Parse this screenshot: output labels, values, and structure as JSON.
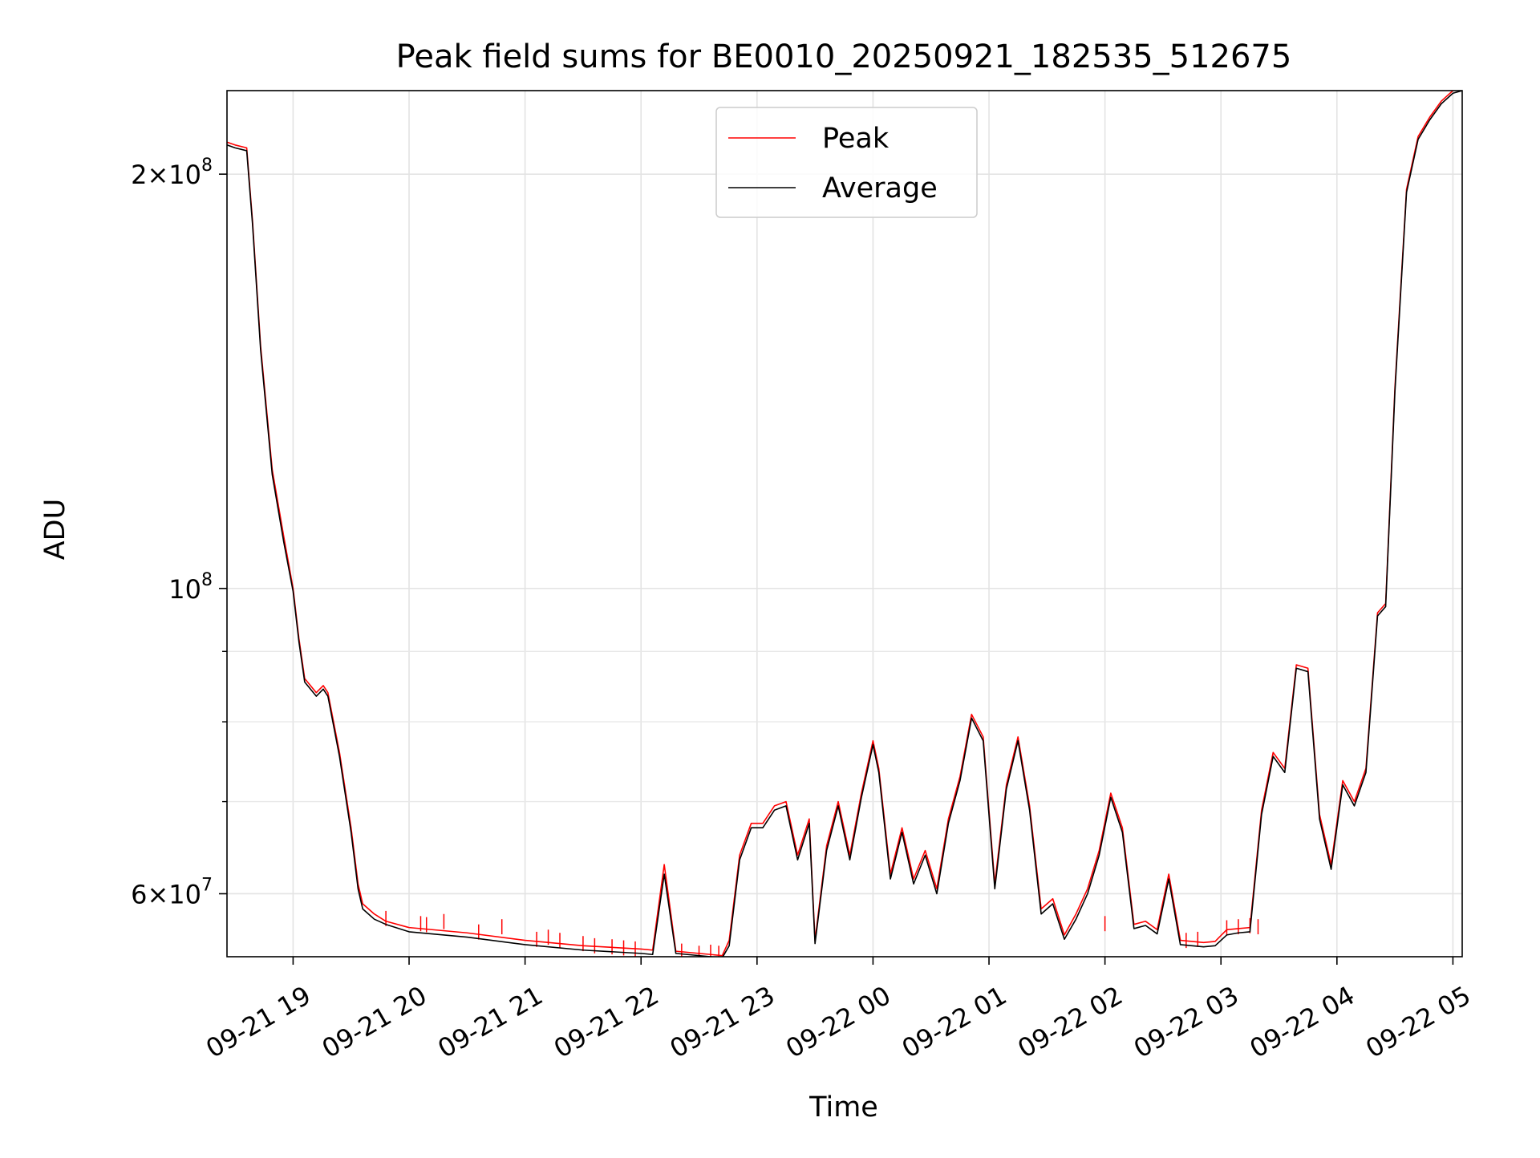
{
  "chart_data": {
    "type": "line",
    "title": "Peak field sums for BE0010_20250921_182535_512675",
    "xlabel": "Time",
    "ylabel": "ADU",
    "yscale": "log",
    "ylim": [
      54000000,
      230000000
    ],
    "xlim_hours": [
      18.43,
      29.08
    ],
    "grid": true,
    "legend_position": "upper-center",
    "x_ticks": [
      {
        "hour": 19,
        "label": "09-21 19"
      },
      {
        "hour": 20,
        "label": "09-21 20"
      },
      {
        "hour": 21,
        "label": "09-21 21"
      },
      {
        "hour": 22,
        "label": "09-21 22"
      },
      {
        "hour": 23,
        "label": "09-21 23"
      },
      {
        "hour": 24,
        "label": "09-22 00"
      },
      {
        "hour": 25,
        "label": "09-22 01"
      },
      {
        "hour": 26,
        "label": "09-22 02"
      },
      {
        "hour": 27,
        "label": "09-22 03"
      },
      {
        "hour": 28,
        "label": "09-22 04"
      },
      {
        "hour": 29,
        "label": "09-22 05"
      }
    ],
    "y_major_ticks": [
      {
        "value": 60000000,
        "mantissa": "6",
        "exponent": "7"
      },
      {
        "value": 100000000,
        "mantissa": "",
        "exponent": "8"
      },
      {
        "value": 200000000,
        "mantissa": "2",
        "exponent": "8"
      }
    ],
    "y_minor_ticks": [
      70000000,
      80000000,
      90000000
    ],
    "series": [
      {
        "name": "Peak",
        "color": "#ff0000",
        "x_hours": [
          18.43,
          18.5,
          18.6,
          18.65,
          18.72,
          18.82,
          18.92,
          19.0,
          19.05,
          19.1,
          19.2,
          19.26,
          19.3,
          19.4,
          19.5,
          19.56,
          19.6,
          19.7,
          19.8,
          20.0,
          20.5,
          21.0,
          21.5,
          22.0,
          22.1,
          22.2,
          22.3,
          22.5,
          22.7,
          22.76,
          22.85,
          22.95,
          23.05,
          23.15,
          23.25,
          23.35,
          23.45,
          23.5,
          23.6,
          23.7,
          23.8,
          23.9,
          24.0,
          24.05,
          24.15,
          24.25,
          24.35,
          24.45,
          24.55,
          24.65,
          24.75,
          24.85,
          24.95,
          25.05,
          25.15,
          25.25,
          25.35,
          25.45,
          25.55,
          25.65,
          25.75,
          25.85,
          25.95,
          26.05,
          26.15,
          26.25,
          26.35,
          26.45,
          26.55,
          26.65,
          26.75,
          26.85,
          26.95,
          27.05,
          27.15,
          27.25,
          27.35,
          27.45,
          27.55,
          27.65,
          27.75,
          27.85,
          27.95,
          28.05,
          28.15,
          28.25,
          28.35,
          28.42,
          28.5,
          28.6,
          28.7,
          28.8,
          28.9,
          29.0,
          29.08
        ],
        "values": [
          211000000,
          210000000,
          209000000,
          185000000,
          150000000,
          122000000,
          109000000,
          100000000,
          92000000,
          86000000,
          84000000,
          85000000,
          84000000,
          76000000,
          67000000,
          61000000,
          59000000,
          58000000,
          57300000,
          56700000,
          56200000,
          55500000,
          55000000,
          54700000,
          54600000,
          63000000,
          54500000,
          54300000,
          54100000,
          55500000,
          64000000,
          67500000,
          67500000,
          69500000,
          70000000,
          64000000,
          68000000,
          55500000,
          65000000,
          70000000,
          64000000,
          71000000,
          77500000,
          74000000,
          62000000,
          67000000,
          61500000,
          64500000,
          60500000,
          68000000,
          73000000,
          81000000,
          78000000,
          61000000,
          72000000,
          78000000,
          69500000,
          58500000,
          59500000,
          56000000,
          58000000,
          60500000,
          64500000,
          71000000,
          67000000,
          57000000,
          57300000,
          56500000,
          62000000,
          55500000,
          55400000,
          55300000,
          55400000,
          56500000,
          56600000,
          56700000,
          69000000,
          76000000,
          74000000,
          88000000,
          87500000,
          68500000,
          63000000,
          72500000,
          70000000,
          74000000,
          96000000,
          97500000,
          140000000,
          195000000,
          213000000,
          220000000,
          226000000,
          230000000,
          231000000
        ]
      },
      {
        "name": "Average",
        "color": "#000000",
        "x_hours": [
          18.43,
          18.5,
          18.6,
          18.65,
          18.72,
          18.82,
          18.92,
          19.0,
          19.05,
          19.1,
          19.2,
          19.26,
          19.3,
          19.4,
          19.5,
          19.56,
          19.6,
          19.7,
          19.8,
          20.0,
          20.5,
          21.0,
          21.5,
          22.0,
          22.1,
          22.2,
          22.3,
          22.5,
          22.7,
          22.76,
          22.85,
          22.95,
          23.05,
          23.15,
          23.25,
          23.35,
          23.45,
          23.5,
          23.6,
          23.7,
          23.8,
          23.9,
          24.0,
          24.05,
          24.15,
          24.25,
          24.35,
          24.45,
          24.55,
          24.65,
          24.75,
          24.85,
          24.95,
          25.05,
          25.15,
          25.25,
          25.35,
          25.45,
          25.55,
          25.65,
          25.75,
          25.85,
          25.95,
          26.05,
          26.15,
          26.25,
          26.35,
          26.45,
          26.55,
          26.65,
          26.75,
          26.85,
          26.95,
          27.05,
          27.15,
          27.25,
          27.35,
          27.45,
          27.55,
          27.65,
          27.75,
          27.85,
          27.95,
          28.05,
          28.15,
          28.25,
          28.35,
          28.42,
          28.5,
          28.6,
          28.7,
          28.8,
          28.9,
          29.0,
          29.08
        ],
        "values": [
          210000000,
          209000000,
          208000000,
          184000000,
          149000000,
          121000000,
          108000000,
          99500000,
          91500000,
          85500000,
          83500000,
          84500000,
          83500000,
          75500000,
          66500000,
          60500000,
          58500000,
          57500000,
          57000000,
          56300000,
          55800000,
          55100000,
          54600000,
          54300000,
          54200000,
          62000000,
          54300000,
          54100000,
          53900000,
          55000000,
          63500000,
          67000000,
          67000000,
          69000000,
          69500000,
          63500000,
          67500000,
          55200000,
          64500000,
          69500000,
          63500000,
          70500000,
          77000000,
          73500000,
          61500000,
          66500000,
          61000000,
          64000000,
          60000000,
          67500000,
          72500000,
          80500000,
          77500000,
          60500000,
          71500000,
          77500000,
          69000000,
          58000000,
          59000000,
          55600000,
          57500000,
          60000000,
          64000000,
          70500000,
          66500000,
          56600000,
          56900000,
          56100000,
          61500000,
          55100000,
          55000000,
          54900000,
          55000000,
          56000000,
          56200000,
          56300000,
          68500000,
          75500000,
          73500000,
          87500000,
          87000000,
          68000000,
          62500000,
          72000000,
          69500000,
          73500000,
          95500000,
          97000000,
          139000000,
          194000000,
          212000000,
          219000000,
          225000000,
          229000000,
          230000000
        ]
      }
    ],
    "peak_spikes": [
      {
        "hour": 19.8,
        "value": 58300000
      },
      {
        "hour": 20.1,
        "value": 57800000
      },
      {
        "hour": 20.15,
        "value": 57700000
      },
      {
        "hour": 20.3,
        "value": 58000000
      },
      {
        "hour": 20.6,
        "value": 57000000
      },
      {
        "hour": 20.8,
        "value": 57500000
      },
      {
        "hour": 21.1,
        "value": 56300000
      },
      {
        "hour": 21.2,
        "value": 56500000
      },
      {
        "hour": 21.3,
        "value": 56200000
      },
      {
        "hour": 21.5,
        "value": 55900000
      },
      {
        "hour": 21.6,
        "value": 55700000
      },
      {
        "hour": 21.75,
        "value": 55600000
      },
      {
        "hour": 21.85,
        "value": 55500000
      },
      {
        "hour": 21.95,
        "value": 55400000
      },
      {
        "hour": 22.35,
        "value": 55200000
      },
      {
        "hour": 22.5,
        "value": 55000000
      },
      {
        "hour": 22.6,
        "value": 55100000
      },
      {
        "hour": 22.67,
        "value": 55000000
      },
      {
        "hour": 27.05,
        "value": 57400000
      },
      {
        "hour": 27.15,
        "value": 57500000
      },
      {
        "hour": 27.25,
        "value": 57600000
      },
      {
        "hour": 27.32,
        "value": 57500000
      },
      {
        "hour": 26.0,
        "value": 57800000
      },
      {
        "hour": 26.7,
        "value": 56200000
      },
      {
        "hour": 26.8,
        "value": 56300000
      }
    ],
    "legend": [
      {
        "label": "Peak",
        "color": "#ff0000"
      },
      {
        "label": "Average",
        "color": "#000000"
      }
    ]
  }
}
